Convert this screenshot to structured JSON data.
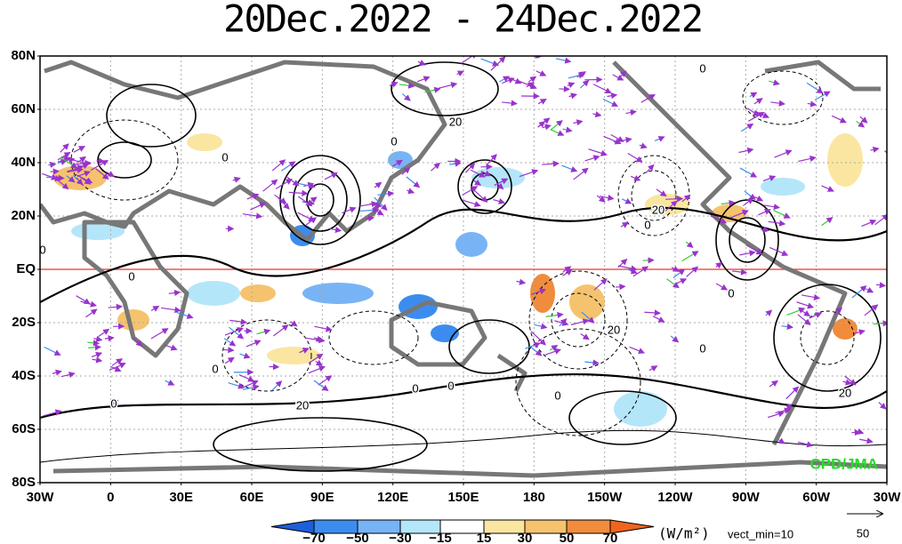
{
  "header": {
    "title": "20Dec.2022 - 24Dec.2022"
  },
  "map": {
    "lat_labels": [
      "80N",
      "60N",
      "40N",
      "20N",
      "EQ",
      "20S",
      "40S",
      "60S",
      "80S"
    ],
    "lon_labels": [
      "30W",
      "0",
      "30E",
      "60E",
      "90E",
      "120E",
      "150E",
      "180",
      "150W",
      "120W",
      "90W",
      "60W",
      "30W"
    ],
    "contour_labels": [
      "0",
      "20",
      "0",
      "0",
      "20",
      "0",
      "0",
      "0",
      "0",
      "20",
      "0",
      "0",
      "0",
      "0",
      "20",
      "20",
      "0",
      "0"
    ],
    "credit": "CPD/JMA"
  },
  "colorbar": {
    "labels": [
      "−70",
      "−50",
      "−30",
      "−15",
      "15",
      "30",
      "50",
      "70"
    ],
    "unit": "(W/m²)",
    "vect_min": "vect_min=10",
    "reference_vector": "50"
  }
}
